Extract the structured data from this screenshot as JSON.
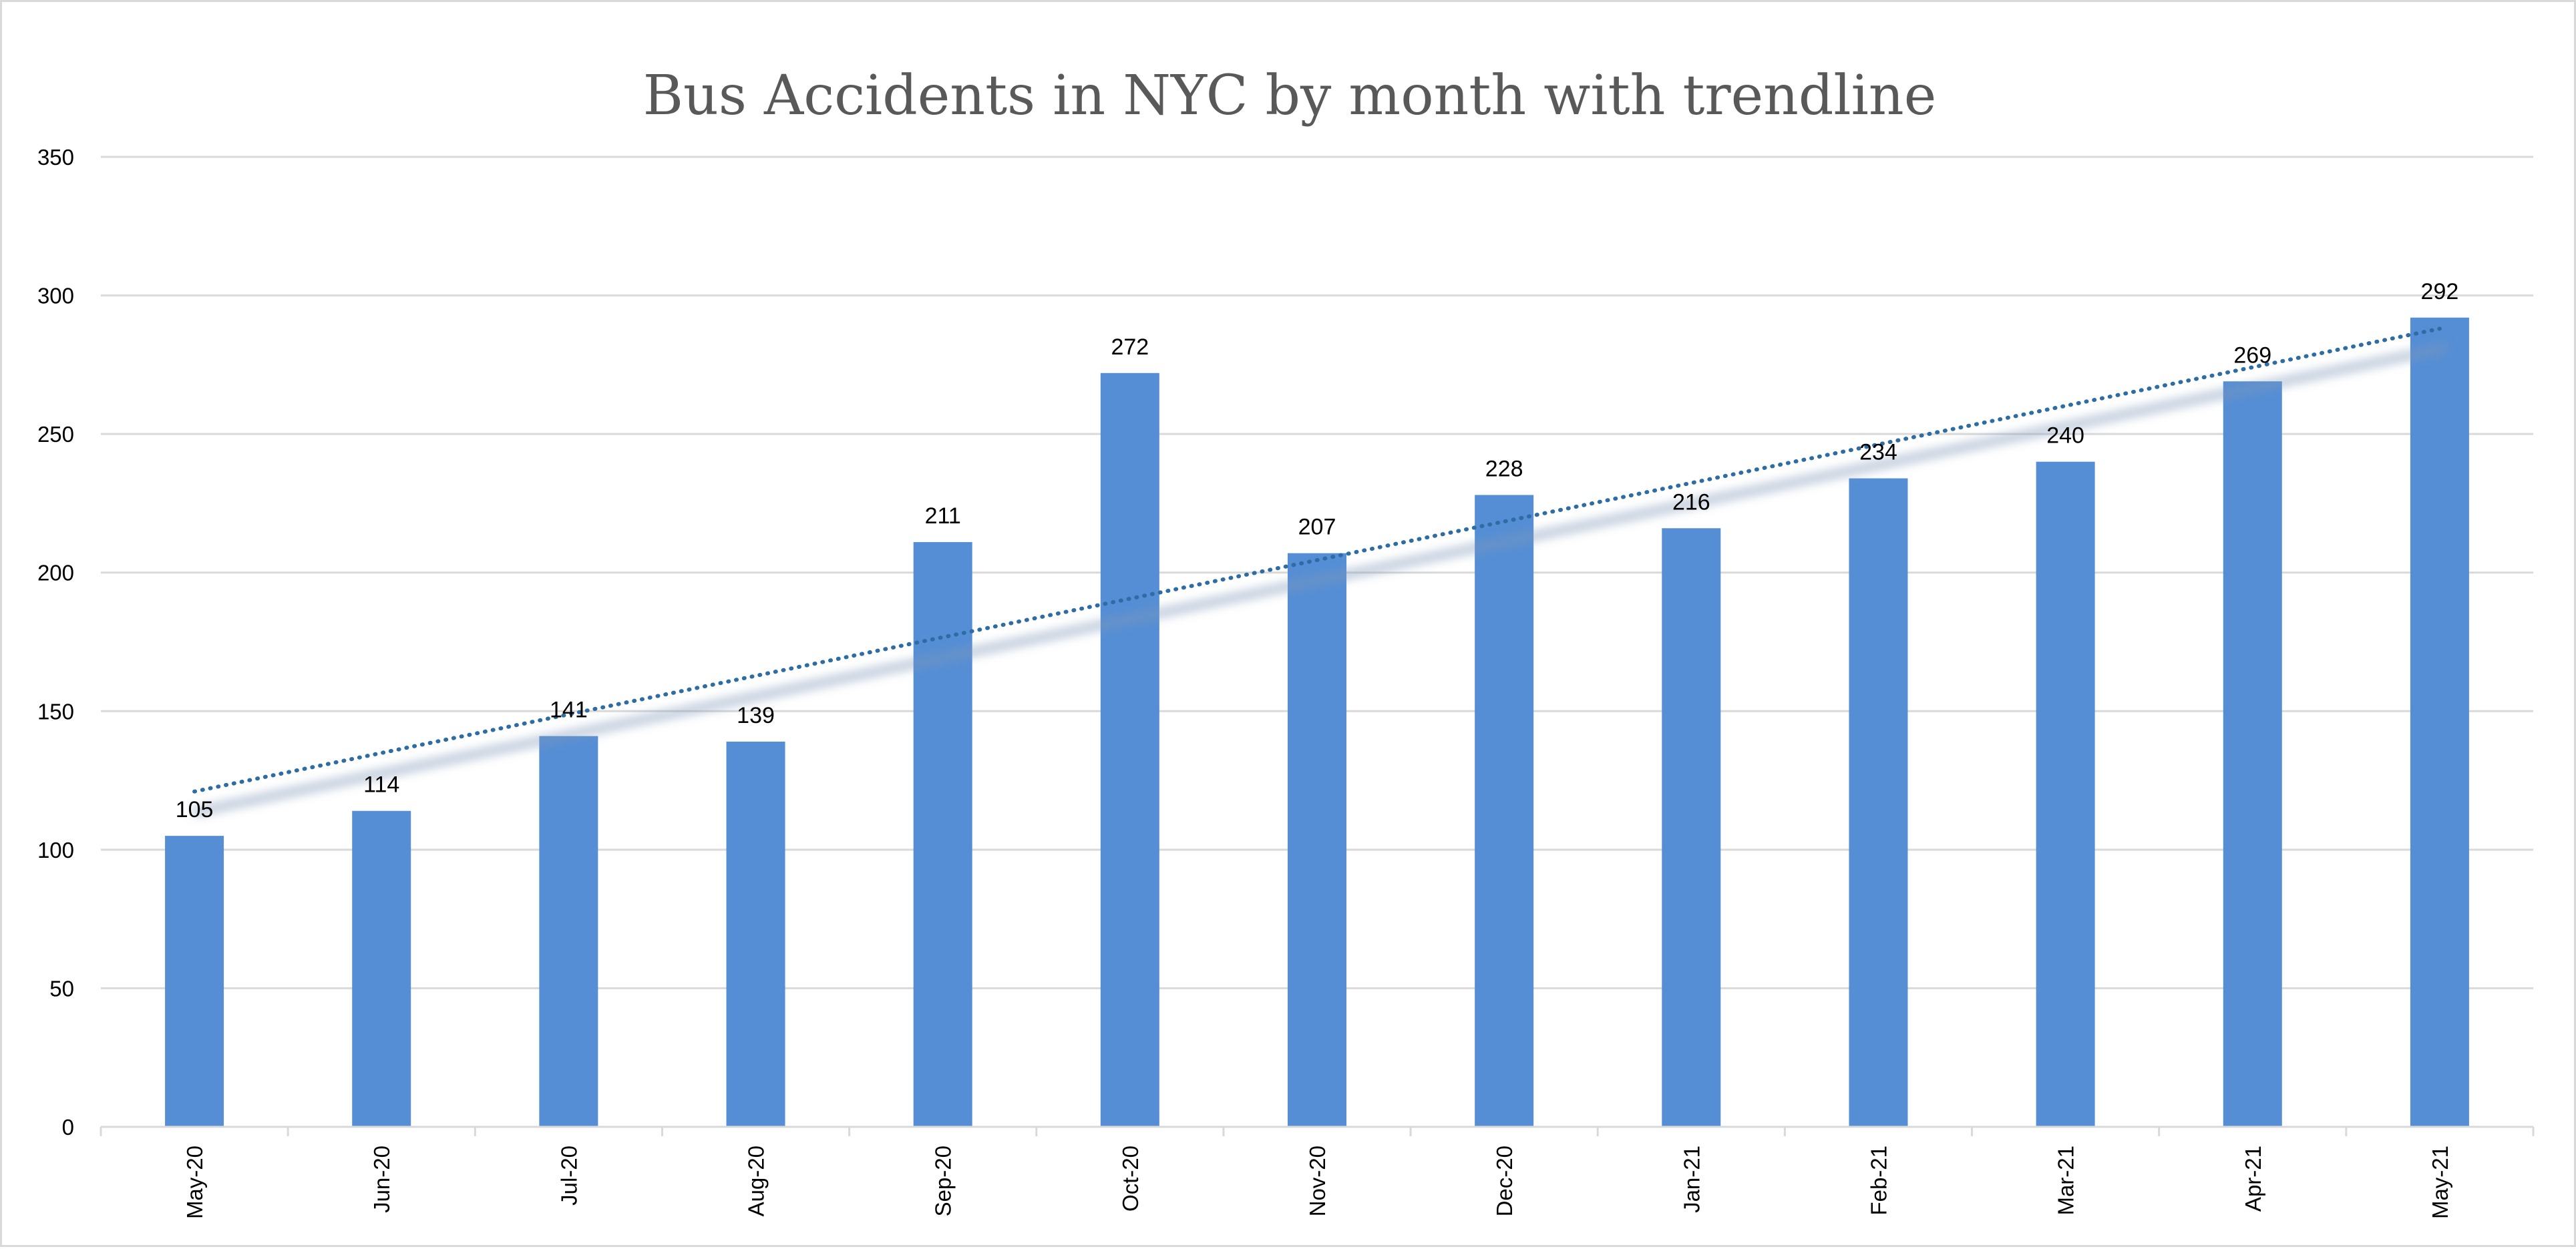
{
  "chart_data": {
    "type": "bar",
    "title": "Bus Accidents in NYC by month with trendline",
    "xlabel": "",
    "ylabel": "",
    "categories": [
      "May-20",
      "Jun-20",
      "Jul-20",
      "Aug-20",
      "Sep-20",
      "Oct-20",
      "Nov-20",
      "Dec-20",
      "Jan-21",
      "Feb-21",
      "Mar-21",
      "Apr-21",
      "May-21"
    ],
    "series": [
      {
        "values": [
          105,
          114,
          141,
          139,
          211,
          272,
          207,
          228,
          216,
          234,
          240,
          269,
          292
        ],
        "color": "#558ed5"
      }
    ],
    "data_labels": [
      "105",
      "114",
      "141",
      "139",
      "211",
      "272",
      "207",
      "228",
      "216",
      "234",
      "240",
      "269",
      "292"
    ],
    "ylim": [
      0,
      350
    ],
    "y_ticks": [
      0,
      50,
      100,
      150,
      200,
      250,
      300,
      350
    ],
    "y_tick_labels": [
      "0",
      "50",
      "100",
      "150",
      "200",
      "250",
      "300",
      "350"
    ],
    "grid": true,
    "legend": "none",
    "trendline": {
      "type": "linear",
      "style": "dotted",
      "color": "#2e6da4",
      "start_value": 121,
      "end_value": 288
    }
  }
}
